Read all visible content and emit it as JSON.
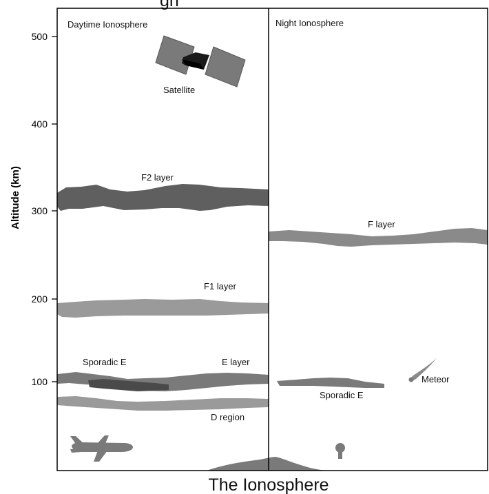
{
  "figure": {
    "top_text_fragment": "gh",
    "caption": "The Ionosphere",
    "y_axis_title": "Altitude (km)",
    "y_ticks": [
      "500",
      "400",
      "300",
      "200",
      "100"
    ],
    "panels": {
      "left_title": "Daytime Ionosphere",
      "right_title": "Night Ionosphere"
    },
    "labels": {
      "satellite": "Satellite",
      "f2_layer": "F2 layer",
      "f1_layer": "F1 layer",
      "sporadic_e_day": "Sporadic E",
      "e_layer": "E layer",
      "d_region": "D region",
      "f_layer": "F layer",
      "sporadic_e_night": "Sporadic E",
      "meteor": "Meteor"
    }
  },
  "colors": {
    "f2_layer": "#5f5f5f",
    "f1_layer": "#9a9a9a",
    "e_layer": "#7a7a7a",
    "sporadic_e_dark": "#4a4a4a",
    "d_region": "#9a9a9a",
    "f_layer_night": "#8a8a8a",
    "satellite_panels": "#7a7a7a",
    "satellite_body": "#1a1a1a"
  }
}
